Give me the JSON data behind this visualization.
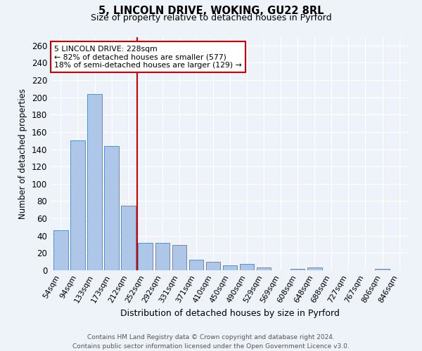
{
  "title1": "5, LINCOLN DRIVE, WOKING, GU22 8RL",
  "title2": "Size of property relative to detached houses in Pyrford",
  "xlabel": "Distribution of detached houses by size in Pyrford",
  "ylabel": "Number of detached properties",
  "categories": [
    "54sqm",
    "94sqm",
    "133sqm",
    "173sqm",
    "212sqm",
    "252sqm",
    "292sqm",
    "331sqm",
    "371sqm",
    "410sqm",
    "450sqm",
    "490sqm",
    "529sqm",
    "569sqm",
    "608sqm",
    "648sqm",
    "688sqm",
    "727sqm",
    "767sqm",
    "806sqm",
    "846sqm"
  ],
  "values": [
    46,
    150,
    204,
    144,
    75,
    32,
    32,
    29,
    12,
    10,
    6,
    7,
    3,
    0,
    2,
    3,
    0,
    0,
    0,
    2,
    0
  ],
  "bar_color": "#aec6e8",
  "bar_edge_color": "#5a8fc2",
  "vline_x": 4.5,
  "vline_color": "#cc0000",
  "annotation_text": "5 LINCOLN DRIVE: 228sqm\n← 82% of detached houses are smaller (577)\n18% of semi-detached houses are larger (129) →",
  "annotation_box_color": "#ffffff",
  "annotation_box_edgecolor": "#cc0000",
  "ylim": [
    0,
    270
  ],
  "yticks": [
    0,
    20,
    40,
    60,
    80,
    100,
    120,
    140,
    160,
    180,
    200,
    220,
    240,
    260
  ],
  "footer": "Contains HM Land Registry data © Crown copyright and database right 2024.\nContains public sector information licensed under the Open Government Licence v3.0.",
  "bg_color": "#eef2f9",
  "grid_color": "#ffffff"
}
